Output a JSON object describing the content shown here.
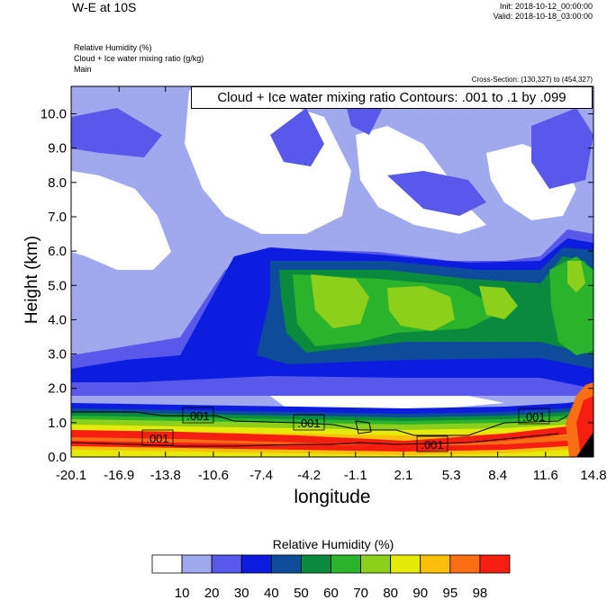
{
  "header": {
    "title": "W-E at 10S",
    "init": "Init: 2018-10-12_00:00:00",
    "valid": "Valid: 2018-10-18_03:00:00",
    "field_lines": [
      "Relative Humidity   (%)",
      "Cloud + Ice water mixing ratio   (g/kg)",
      "Main"
    ],
    "cross_section": "Cross-Section: (130,327) to (454,327)"
  },
  "colors": [
    "#ffffff",
    "#a0a8ee",
    "#5858ea",
    "#0c1de0",
    "#0c4c9a",
    "#0a8a3c",
    "#2cb32c",
    "#8cd01c",
    "#e6ea08",
    "#fcc00a",
    "#fb6e14",
    "#f51e10"
  ],
  "chart_data": {
    "type": "heatmap",
    "title": "",
    "xlabel": "longitude",
    "ylabel": "Height (km)",
    "x_ticks": [
      "-20.1",
      "-16.9",
      "-13.8",
      "-10.6",
      "-7.4",
      "-4.2",
      "-1.1",
      "2.1",
      "5.3",
      "8.4",
      "11.6",
      "14.8"
    ],
    "y_ticks": [
      "0.0",
      "1.0",
      "2.0",
      "3.0",
      "4.0",
      "5.0",
      "6.0",
      "7.0",
      "8.0",
      "9.0",
      "10.0"
    ],
    "xlim": [
      -20.1,
      14.8
    ],
    "ylim": [
      0,
      10.8
    ],
    "contour_note": "Cloud + Ice water mixing ratio Contours: .001 to .1 by .099",
    "contour_labels": [
      ".001",
      ".001",
      ".001",
      ".001",
      ".001"
    ],
    "legend_title": "Relative Humidity  (%)",
    "legend_levels": [
      "10",
      "20",
      "30",
      "40",
      "50",
      "60",
      "70",
      "80",
      "90",
      "95",
      "98"
    ],
    "colormap": [
      "#ffffff",
      "#a0a8ee",
      "#5858ea",
      "#0c1de0",
      "#0c4c9a",
      "#0a8a3c",
      "#2cb32c",
      "#8cd01c",
      "#e6ea08",
      "#fcc00a",
      "#fb6e14",
      "#f51e10"
    ]
  }
}
